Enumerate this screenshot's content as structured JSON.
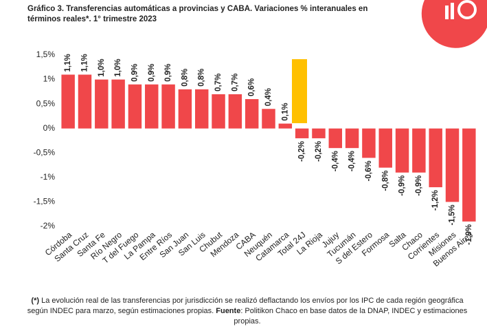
{
  "chart_data": {
    "type": "bar",
    "title": "Gráfico 3. Transferencias automáticas a provincias y CABA. Variaciones % interanuales en términos reales*. 1° trimestre 2023",
    "categories": [
      "Córdoba",
      "Santa Cruz",
      "Santa Fe",
      "Río Negro",
      "T del Fuego",
      "La Pampa",
      "Entre Ríos",
      "San Juan",
      "San Luis",
      "Chubut",
      "Mendoza",
      "CABA",
      "Neuquén",
      "Catamarca",
      "Total 24J",
      "La Rioja",
      "Jujuy",
      "Tucumán",
      "S del Estero",
      "Formosa",
      "Salta",
      "Chaco",
      "Corrientes",
      "Misiones",
      "Buenos Aires"
    ],
    "values": [
      1.1,
      1.1,
      1.0,
      1.0,
      0.9,
      0.9,
      0.9,
      0.8,
      0.8,
      0.7,
      0.7,
      0.6,
      0.4,
      0.1,
      -0.2,
      -0.2,
      -0.4,
      -0.4,
      -0.6,
      -0.8,
      -0.9,
      -0.9,
      -1.2,
      -1.5,
      -1.9
    ],
    "value_labels": [
      "1,1%",
      "1,1%",
      "1,0%",
      "1,0%",
      "0,9%",
      "0,9%",
      "0,9%",
      "0,8%",
      "0,8%",
      "0,7%",
      "0,7%",
      "0,6%",
      "0,4%",
      "0,1%",
      "-0,2%",
      "-0,2%",
      "-0,4%",
      "-0,4%",
      "-0,6%",
      "-0,8%",
      "-0,9%",
      "-0,9%",
      "-1,2%",
      "-1,5%",
      "-1,9%"
    ],
    "color": "#f0474a",
    "ylim": [
      -2,
      1.5
    ],
    "yticks": [
      {
        "value": 1.5,
        "label": "1,5%"
      },
      {
        "value": 1,
        "label": "1%"
      },
      {
        "value": 0.5,
        "label": "0,5%"
      },
      {
        "value": 0,
        "label": "0%"
      },
      {
        "value": -0.5,
        "label": "-0,5%"
      },
      {
        "value": -1,
        "label": "-1%"
      },
      {
        "value": -1.5,
        "label": "-1,5%"
      },
      {
        "value": -2,
        "label": "-2%"
      }
    ],
    "grid": false,
    "note": {
      "mark": "(*)",
      "text": " La evolución real de las transferencias por jurisdicción se realizó deflactando los envíos por los IPC de cada región geográfica según INDEC para marzo, según estimaciones propias. ",
      "source_label": "Fuente",
      "source_text": ": Politikon Chaco en base datos de la DNAP, INDEC y estimaciones propias."
    }
  }
}
